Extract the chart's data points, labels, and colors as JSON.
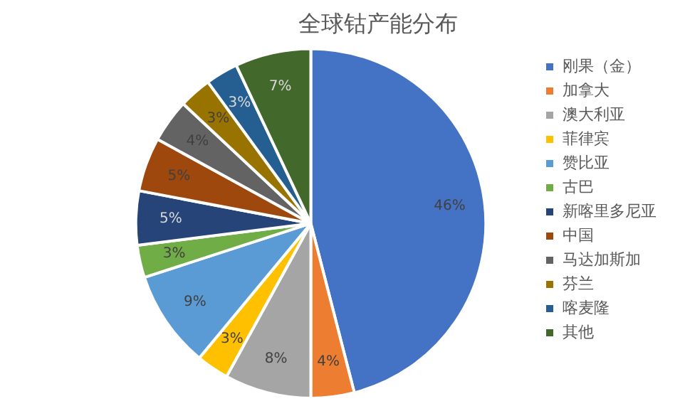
{
  "chart_data": {
    "type": "pie",
    "title": "全球钴产能分布",
    "categories": [
      "刚果（金）",
      "加拿大",
      "澳大利亚",
      "菲律宾",
      "赞比亚",
      "古巴",
      "新喀里多尼亚",
      "中国",
      "马达加斯加",
      "芬兰",
      "喀麦隆",
      "其他"
    ],
    "values": [
      46,
      4,
      8,
      3,
      9,
      3,
      5,
      5,
      4,
      3,
      3,
      7
    ],
    "colors": [
      "#4472c4",
      "#ed7d31",
      "#a5a5a5",
      "#ffc000",
      "#5b9bd5",
      "#70ad47",
      "#264478",
      "#9e480e",
      "#636363",
      "#997300",
      "#255e91",
      "#43682b"
    ],
    "value_labels": [
      "46%",
      "4%",
      "8%",
      "3%",
      "9%",
      "3%",
      "5%",
      "5%",
      "4%",
      "3%",
      "3%",
      "7%"
    ],
    "legend": "right"
  }
}
